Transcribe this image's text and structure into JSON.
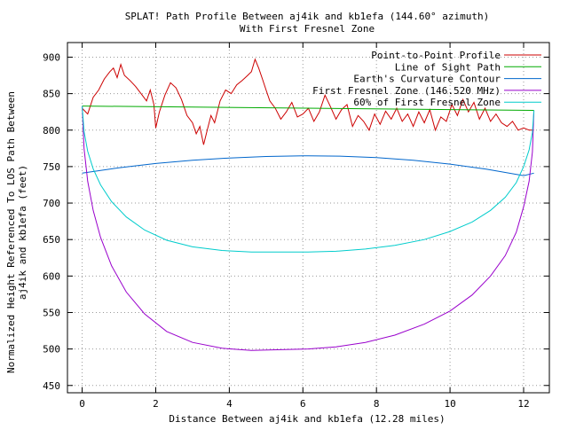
{
  "chart_data": {
    "type": "line",
    "title_line1": "SPLAT! Path Profile Between aj4ik and kb1efa (144.60° azimuth)",
    "title_line2": "With First Fresnel Zone",
    "xlabel": "Distance Between aj4ik and kb1efa (12.28 miles)",
    "ylabel_line1": "Normalized Height Referenced To LOS Path Between",
    "ylabel_line2": "aj4ik and kb1efa (feet)",
    "xlim": [
      -0.4,
      12.7
    ],
    "ylim": [
      440,
      920
    ],
    "x_ticks": [
      0,
      2,
      4,
      6,
      8,
      10,
      12
    ],
    "y_ticks": [
      450,
      500,
      550,
      600,
      650,
      700,
      750,
      800,
      850,
      900
    ],
    "grid": true,
    "legend_position": "top-right",
    "series": [
      {
        "name": "Point-to-Point Profile",
        "color": "#cc0000",
        "x": [
          0,
          0.15,
          0.3,
          0.45,
          0.6,
          0.75,
          0.85,
          0.95,
          1.05,
          1.15,
          1.3,
          1.45,
          1.6,
          1.75,
          1.85,
          1.95,
          2.0,
          2.1,
          2.25,
          2.4,
          2.55,
          2.7,
          2.85,
          3.0,
          3.1,
          3.2,
          3.3,
          3.4,
          3.5,
          3.6,
          3.75,
          3.9,
          4.05,
          4.2,
          4.35,
          4.5,
          4.6,
          4.7,
          4.8,
          4.9,
          5.0,
          5.1,
          5.25,
          5.4,
          5.55,
          5.7,
          5.85,
          6.0,
          6.15,
          6.3,
          6.45,
          6.6,
          6.75,
          6.9,
          7.05,
          7.2,
          7.35,
          7.5,
          7.65,
          7.8,
          7.95,
          8.1,
          8.25,
          8.4,
          8.55,
          8.7,
          8.85,
          9.0,
          9.15,
          9.3,
          9.45,
          9.6,
          9.75,
          9.9,
          10.05,
          10.2,
          10.35,
          10.5,
          10.65,
          10.8,
          10.95,
          11.1,
          11.25,
          11.4,
          11.55,
          11.7,
          11.85,
          12.0,
          12.15,
          12.28
        ],
        "y": [
          830,
          822,
          845,
          855,
          870,
          880,
          885,
          872,
          890,
          875,
          868,
          860,
          850,
          840,
          855,
          835,
          803,
          825,
          848,
          865,
          858,
          842,
          820,
          810,
          795,
          805,
          780,
          800,
          820,
          810,
          840,
          855,
          850,
          862,
          868,
          875,
          880,
          897,
          885,
          870,
          855,
          840,
          830,
          815,
          825,
          838,
          818,
          822,
          830,
          812,
          825,
          848,
          832,
          815,
          828,
          835,
          805,
          820,
          812,
          800,
          822,
          808,
          826,
          815,
          830,
          812,
          822,
          805,
          825,
          810,
          828,
          800,
          818,
          812,
          835,
          820,
          842,
          825,
          838,
          815,
          830,
          812,
          822,
          810,
          805,
          812,
          800,
          803,
          800,
          800
        ]
      },
      {
        "name": "Line of Sight Path",
        "color": "#00aa00",
        "x": [
          0,
          12.28
        ],
        "y": [
          833,
          827
        ]
      },
      {
        "name": "Earth's Curvature Contour",
        "color": "#0066cc",
        "x": [
          0,
          1,
          2,
          3,
          4,
          5,
          6,
          6.14,
          7,
          8,
          9,
          10,
          11,
          12,
          12.28
        ],
        "y": [
          741,
          748.4,
          754.2,
          758.6,
          761.8,
          763.8,
          764.7,
          764.7,
          764.3,
          762.3,
          758.7,
          753.4,
          746.3,
          737.6,
          741
        ]
      },
      {
        "name": "First Fresnel Zone (146.520 MHz)",
        "color": "#9900cc",
        "x": [
          0,
          0.05,
          0.15,
          0.3,
          0.5,
          0.8,
          1.2,
          1.7,
          2.3,
          3.0,
          3.8,
          4.6,
          5.4,
          6.14,
          6.9,
          7.7,
          8.5,
          9.3,
          10.0,
          10.6,
          11.1,
          11.5,
          11.8,
          12.0,
          12.15,
          12.24,
          12.28
        ],
        "y": [
          833,
          775,
          730,
          690,
          653,
          614,
          578,
          548,
          524,
          509,
          501,
          498,
          499,
          500,
          503,
          509,
          519,
          534,
          552,
          574,
          600,
          628,
          660,
          695,
          730,
          770,
          827
        ]
      },
      {
        "name": "60% of First Fresnel Zone",
        "color": "#00cccc",
        "x": [
          0,
          0.05,
          0.15,
          0.3,
          0.5,
          0.8,
          1.2,
          1.7,
          2.3,
          3.0,
          3.8,
          4.6,
          5.4,
          6.14,
          6.9,
          7.7,
          8.5,
          9.3,
          10.0,
          10.6,
          11.1,
          11.5,
          11.8,
          12.0,
          12.15,
          12.24,
          12.28
        ],
        "y": [
          833,
          798,
          771,
          747,
          725,
          702,
          681,
          663,
          649,
          640,
          635,
          633,
          633,
          633,
          634,
          637,
          642,
          650,
          661,
          674,
          690,
          708,
          728,
          750,
          773,
          797,
          827
        ]
      }
    ]
  }
}
